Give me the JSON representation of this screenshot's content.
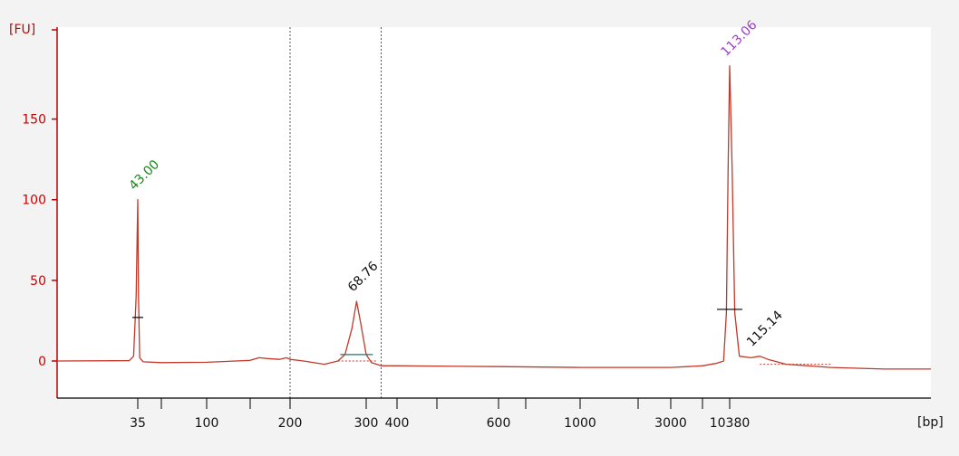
{
  "chart_data": {
    "type": "line",
    "x_unit_label": "[bp]",
    "y_unit_label": "[FU]",
    "yticks": [
      0,
      50,
      100,
      150
    ],
    "ylim": [
      -23,
      207
    ],
    "xticks": [
      {
        "label": "35",
        "value": 35
      },
      {
        "label": "100",
        "value": 100
      },
      {
        "label": "200",
        "value": 200
      },
      {
        "label": "300",
        "value": 300
      },
      {
        "label": "400",
        "value": 400
      },
      {
        "label": "600",
        "value": 600
      },
      {
        "label": "1000",
        "value": 1000
      },
      {
        "label": "3000",
        "value": 3000
      },
      {
        "label": "10380",
        "value": 10380
      }
    ],
    "xlim_bp": [
      20,
      60000
    ],
    "ladder_bp": [
      20,
      35,
      50,
      100,
      150,
      200,
      300,
      400,
      500,
      600,
      700,
      1000,
      2000,
      3000,
      7000,
      10380,
      60000
    ],
    "region_markers_bp": [
      200,
      345
    ],
    "series": [
      {
        "color": "#c0392b",
        "points": [
          [
            20,
            0
          ],
          [
            33,
            0.2
          ],
          [
            34,
            3
          ],
          [
            34.6,
            40
          ],
          [
            35,
            100
          ],
          [
            35.4,
            40
          ],
          [
            36,
            2
          ],
          [
            38,
            -0.5
          ],
          [
            50,
            -1
          ],
          [
            100,
            -0.8
          ],
          [
            150,
            0.4
          ],
          [
            160,
            2
          ],
          [
            170,
            1.5
          ],
          [
            185,
            1
          ],
          [
            195,
            2
          ],
          [
            200,
            1
          ],
          [
            215,
            0
          ],
          [
            240,
            -2
          ],
          [
            258,
            0
          ],
          [
            268,
            4
          ],
          [
            278,
            20
          ],
          [
            285,
            37
          ],
          [
            292,
            22
          ],
          [
            300,
            4
          ],
          [
            315,
            -1
          ],
          [
            345,
            -3
          ],
          [
            400,
            -3
          ],
          [
            600,
            -3.5
          ],
          [
            1000,
            -4
          ],
          [
            3000,
            -4
          ],
          [
            7000,
            -3
          ],
          [
            8500,
            -1.5
          ],
          [
            9500,
            0
          ],
          [
            9900,
            30
          ],
          [
            10150,
            120
          ],
          [
            10380,
            183
          ],
          [
            10600,
            120
          ],
          [
            10850,
            30
          ],
          [
            11300,
            3
          ],
          [
            12500,
            2
          ],
          [
            13500,
            3
          ],
          [
            14500,
            1
          ],
          [
            17000,
            -2
          ],
          [
            25000,
            -4
          ],
          [
            40000,
            -5
          ],
          [
            60000,
            -5
          ]
        ]
      }
    ],
    "peak_labels": [
      {
        "text": "43.00",
        "x": 35,
        "y": 100,
        "color": "#138a13"
      },
      {
        "text": "68.76",
        "x": 285,
        "y": 37,
        "color": "#111111"
      },
      {
        "text": "113.06",
        "x": 10380,
        "y": 183,
        "color": "#9b3fc9"
      },
      {
        "text": "115.14",
        "x": 13000,
        "y": 3,
        "color": "#111111"
      }
    ],
    "integration_marks": [
      {
        "x": 35,
        "y": 27,
        "color": "#000000"
      },
      {
        "x": 285,
        "y": 4,
        "color": "#1a7a64"
      },
      {
        "x": 10380,
        "y": 32,
        "color": "#000000"
      }
    ]
  }
}
